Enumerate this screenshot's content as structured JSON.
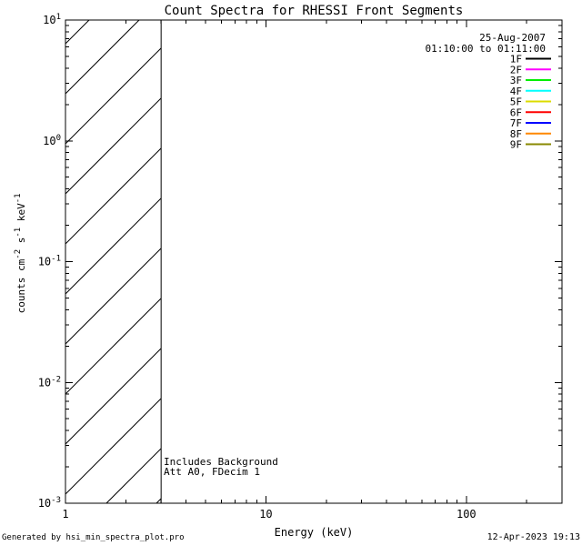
{
  "title": "Count Spectra for RHESSI Front Segments",
  "header": {
    "date": "25-Aug-2007",
    "interval": "01:10:00 to 01:11:00"
  },
  "legend": {
    "entries": [
      {
        "label": "1F",
        "color": "#000000"
      },
      {
        "label": "2F",
        "color": "#ff00ff"
      },
      {
        "label": "3F",
        "color": "#00ee00"
      },
      {
        "label": "4F",
        "color": "#00ffff"
      },
      {
        "label": "5F",
        "color": "#dcdc00"
      },
      {
        "label": "6F",
        "color": "#ff0000"
      },
      {
        "label": "7F",
        "color": "#0000ff"
      },
      {
        "label": "8F",
        "color": "#ff8800"
      },
      {
        "label": "9F",
        "color": "#888800"
      }
    ]
  },
  "annotations": {
    "background": "Includes Background",
    "attenuator": "Att A0, FDecim 1"
  },
  "axes": {
    "x": {
      "label": "Energy (keV)",
      "tick_labels": [
        "1",
        "10",
        "100"
      ]
    },
    "y": {
      "tick_base": "10",
      "tick_exponents": [
        "1",
        "0",
        "-1",
        "-2",
        "-3"
      ],
      "label_parts": [
        {
          "t": "counts cm",
          "sup": false
        },
        {
          "t": "-2",
          "sup": true
        },
        {
          "t": " s",
          "sup": false
        },
        {
          "t": "-1",
          "sup": true
        },
        {
          "t": " keV",
          "sup": false
        },
        {
          "t": "-1",
          "sup": true
        }
      ]
    }
  },
  "footer": {
    "left": "Generated by hsi_min_spectra_plot.pro",
    "right": "12-Apr-2023 19:13"
  },
  "colors": {
    "foreground": "#000000",
    "background": "#ffffff"
  },
  "chart_data": {
    "type": "line",
    "title": "Count Spectra for RHESSI Front Segments",
    "xlabel": "Energy (keV)",
    "ylabel": "counts cm^-2 s^-1 keV^-1",
    "xscale": "log",
    "yscale": "log",
    "xlim": [
      1,
      300
    ],
    "ylim": [
      0.001,
      10
    ],
    "xticks": [
      1,
      10,
      100
    ],
    "yticks": [
      0.001,
      0.01,
      0.1,
      1,
      10
    ],
    "grid": false,
    "legend_position": "upper right",
    "legend_entries": [
      "1F",
      "2F",
      "3F",
      "4F",
      "5F",
      "6F",
      "7F",
      "8F",
      "9F"
    ],
    "series": [],
    "hatched_region": {
      "xmin": 1,
      "xmax": 3,
      "style": "diagonal-45-hatch"
    },
    "annotations": [
      "Includes Background",
      "Att A0, FDecim 1"
    ]
  }
}
